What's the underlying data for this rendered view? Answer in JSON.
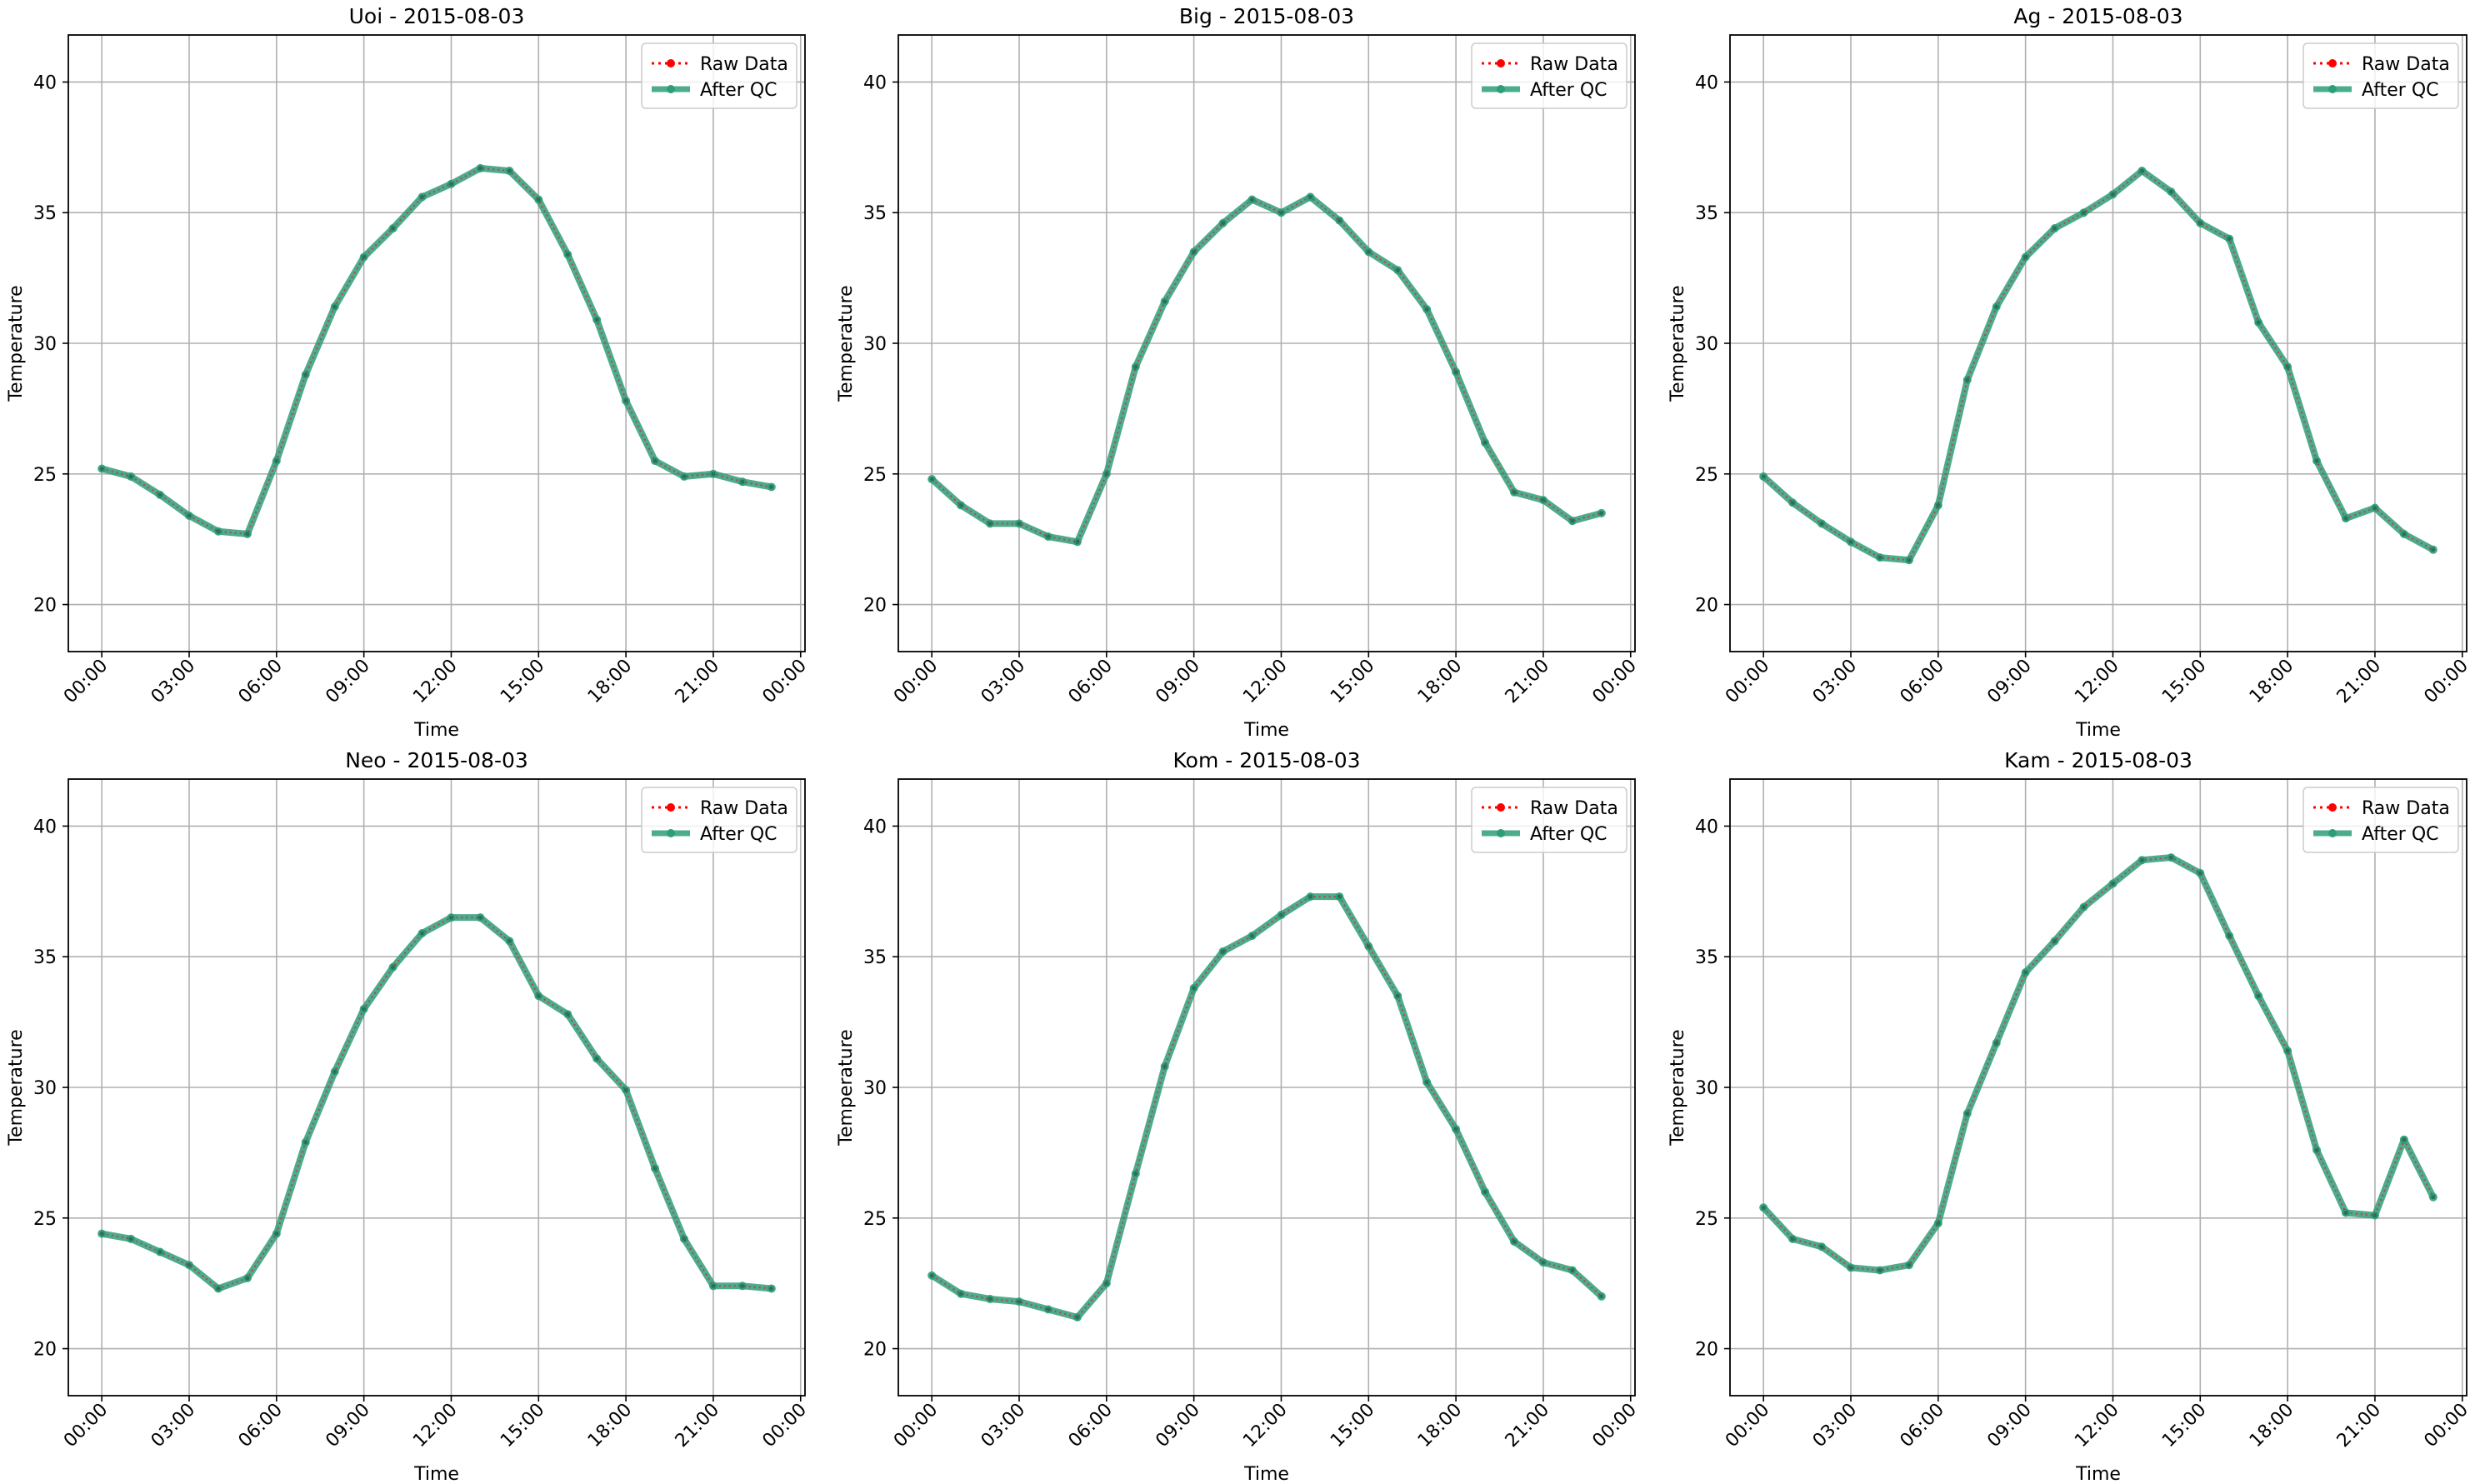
{
  "chart_data": [
    {
      "type": "line",
      "title": "Uoi - 2015-08-03",
      "xlabel": "Time",
      "ylabel": "Temperature",
      "ylim": [
        18.2,
        41.8
      ],
      "yticks": [
        20,
        25,
        30,
        35,
        40
      ],
      "xticks": [
        "00:00",
        "03:00",
        "06:00",
        "09:00",
        "12:00",
        "15:00",
        "18:00",
        "21:00",
        "00:00"
      ],
      "grid": true,
      "legend": "top-right",
      "x": [
        "00:00",
        "01:00",
        "02:00",
        "03:00",
        "04:00",
        "05:00",
        "06:00",
        "07:00",
        "08:00",
        "09:00",
        "10:00",
        "11:00",
        "12:00",
        "13:00",
        "14:00",
        "15:00",
        "16:00",
        "17:00",
        "18:00",
        "19:00",
        "20:00",
        "21:00",
        "22:00",
        "23:00"
      ],
      "series": [
        {
          "name": "Raw Data",
          "color": "#ff0000",
          "style": "dotted",
          "values": [
            25.2,
            24.9,
            24.2,
            23.4,
            22.8,
            22.7,
            25.5,
            28.8,
            31.4,
            33.3,
            34.4,
            35.6,
            36.1,
            36.7,
            36.6,
            35.5,
            33.4,
            30.9,
            27.8,
            25.5,
            24.9,
            25.0,
            24.7,
            24.5
          ]
        },
        {
          "name": "After QC",
          "color": "#2e9e7a",
          "style": "solid",
          "values": [
            25.2,
            24.9,
            24.2,
            23.4,
            22.8,
            22.7,
            25.5,
            28.8,
            31.4,
            33.3,
            34.4,
            35.6,
            36.1,
            36.7,
            36.6,
            35.5,
            33.4,
            30.9,
            27.8,
            25.5,
            24.9,
            25.0,
            24.7,
            24.5
          ]
        }
      ]
    },
    {
      "type": "line",
      "title": "Big - 2015-08-03",
      "xlabel": "Time",
      "ylabel": "Temperature",
      "ylim": [
        18.2,
        41.8
      ],
      "yticks": [
        20,
        25,
        30,
        35,
        40
      ],
      "xticks": [
        "00:00",
        "03:00",
        "06:00",
        "09:00",
        "12:00",
        "15:00",
        "18:00",
        "21:00",
        "00:00"
      ],
      "grid": true,
      "legend": "top-right",
      "x": [
        "00:00",
        "01:00",
        "02:00",
        "03:00",
        "04:00",
        "05:00",
        "06:00",
        "07:00",
        "08:00",
        "09:00",
        "10:00",
        "11:00",
        "12:00",
        "13:00",
        "14:00",
        "15:00",
        "16:00",
        "17:00",
        "18:00",
        "19:00",
        "20:00",
        "21:00",
        "22:00",
        "23:00"
      ],
      "series": [
        {
          "name": "Raw Data",
          "color": "#ff0000",
          "style": "dotted",
          "values": [
            24.8,
            23.8,
            23.1,
            23.1,
            22.6,
            22.4,
            25.0,
            29.1,
            31.6,
            33.5,
            34.6,
            35.5,
            35.0,
            35.6,
            34.7,
            33.5,
            32.8,
            31.3,
            28.9,
            26.2,
            24.3,
            24.0,
            23.2,
            23.5
          ]
        },
        {
          "name": "After QC",
          "color": "#2e9e7a",
          "style": "solid",
          "values": [
            24.8,
            23.8,
            23.1,
            23.1,
            22.6,
            22.4,
            25.0,
            29.1,
            31.6,
            33.5,
            34.6,
            35.5,
            35.0,
            35.6,
            34.7,
            33.5,
            32.8,
            31.3,
            28.9,
            26.2,
            24.3,
            24.0,
            23.2,
            23.5
          ]
        }
      ]
    },
    {
      "type": "line",
      "title": "Ag - 2015-08-03",
      "xlabel": "Time",
      "ylabel": "Temperature",
      "ylim": [
        18.2,
        41.8
      ],
      "yticks": [
        20,
        25,
        30,
        35,
        40
      ],
      "xticks": [
        "00:00",
        "03:00",
        "06:00",
        "09:00",
        "12:00",
        "15:00",
        "18:00",
        "21:00",
        "00:00"
      ],
      "grid": true,
      "legend": "top-right",
      "x": [
        "00:00",
        "01:00",
        "02:00",
        "03:00",
        "04:00",
        "05:00",
        "06:00",
        "07:00",
        "08:00",
        "09:00",
        "10:00",
        "11:00",
        "12:00",
        "13:00",
        "14:00",
        "15:00",
        "16:00",
        "17:00",
        "18:00",
        "19:00",
        "20:00",
        "21:00",
        "22:00",
        "23:00"
      ],
      "series": [
        {
          "name": "Raw Data",
          "color": "#ff0000",
          "style": "dotted",
          "values": [
            24.9,
            23.9,
            23.1,
            22.4,
            21.8,
            21.7,
            23.8,
            28.6,
            31.4,
            33.3,
            34.4,
            35.0,
            35.7,
            36.6,
            35.8,
            34.6,
            34.0,
            30.8,
            29.1,
            25.5,
            23.3,
            23.7,
            22.7,
            22.1
          ]
        },
        {
          "name": "After QC",
          "color": "#2e9e7a",
          "style": "solid",
          "values": [
            24.9,
            23.9,
            23.1,
            22.4,
            21.8,
            21.7,
            23.8,
            28.6,
            31.4,
            33.3,
            34.4,
            35.0,
            35.7,
            36.6,
            35.8,
            34.6,
            34.0,
            30.8,
            29.1,
            25.5,
            23.3,
            23.7,
            22.7,
            22.1
          ]
        }
      ]
    },
    {
      "type": "line",
      "title": "Neo - 2015-08-03",
      "xlabel": "Time",
      "ylabel": "Temperature",
      "ylim": [
        18.2,
        41.8
      ],
      "yticks": [
        20,
        25,
        30,
        35,
        40
      ],
      "xticks": [
        "00:00",
        "03:00",
        "06:00",
        "09:00",
        "12:00",
        "15:00",
        "18:00",
        "21:00",
        "00:00"
      ],
      "grid": true,
      "legend": "top-right",
      "x": [
        "00:00",
        "01:00",
        "02:00",
        "03:00",
        "04:00",
        "05:00",
        "06:00",
        "07:00",
        "08:00",
        "09:00",
        "10:00",
        "11:00",
        "12:00",
        "13:00",
        "14:00",
        "15:00",
        "16:00",
        "17:00",
        "18:00",
        "19:00",
        "20:00",
        "21:00",
        "22:00",
        "23:00"
      ],
      "series": [
        {
          "name": "Raw Data",
          "color": "#ff0000",
          "style": "dotted",
          "values": [
            24.4,
            24.2,
            23.7,
            23.2,
            22.3,
            22.7,
            24.4,
            27.9,
            30.6,
            33.0,
            34.6,
            35.9,
            36.5,
            36.5,
            35.6,
            33.5,
            32.8,
            31.1,
            29.9,
            26.9,
            24.2,
            22.4,
            22.4,
            22.3
          ]
        },
        {
          "name": "After QC",
          "color": "#2e9e7a",
          "style": "solid",
          "values": [
            24.4,
            24.2,
            23.7,
            23.2,
            22.3,
            22.7,
            24.4,
            27.9,
            30.6,
            33.0,
            34.6,
            35.9,
            36.5,
            36.5,
            35.6,
            33.5,
            32.8,
            31.1,
            29.9,
            26.9,
            24.2,
            22.4,
            22.4,
            22.3
          ]
        }
      ]
    },
    {
      "type": "line",
      "title": "Kom - 2015-08-03",
      "xlabel": "Time",
      "ylabel": "Temperature",
      "ylim": [
        18.2,
        41.8
      ],
      "yticks": [
        20,
        25,
        30,
        35,
        40
      ],
      "xticks": [
        "00:00",
        "03:00",
        "06:00",
        "09:00",
        "12:00",
        "15:00",
        "18:00",
        "21:00",
        "00:00"
      ],
      "grid": true,
      "legend": "top-right",
      "x": [
        "00:00",
        "01:00",
        "02:00",
        "03:00",
        "04:00",
        "05:00",
        "06:00",
        "07:00",
        "08:00",
        "09:00",
        "10:00",
        "11:00",
        "12:00",
        "13:00",
        "14:00",
        "15:00",
        "16:00",
        "17:00",
        "18:00",
        "19:00",
        "20:00",
        "21:00",
        "22:00",
        "23:00"
      ],
      "series": [
        {
          "name": "Raw Data",
          "color": "#ff0000",
          "style": "dotted",
          "values": [
            22.8,
            22.1,
            21.9,
            21.8,
            21.5,
            21.2,
            22.5,
            26.7,
            30.8,
            33.8,
            35.2,
            35.8,
            36.6,
            37.3,
            37.3,
            35.4,
            33.5,
            30.2,
            28.4,
            26.0,
            24.1,
            23.3,
            23.0,
            22.0
          ]
        },
        {
          "name": "After QC",
          "color": "#2e9e7a",
          "style": "solid",
          "values": [
            22.8,
            22.1,
            21.9,
            21.8,
            21.5,
            21.2,
            22.5,
            26.7,
            30.8,
            33.8,
            35.2,
            35.8,
            36.6,
            37.3,
            37.3,
            35.4,
            33.5,
            30.2,
            28.4,
            26.0,
            24.1,
            23.3,
            23.0,
            22.0
          ]
        }
      ]
    },
    {
      "type": "line",
      "title": "Kam - 2015-08-03",
      "xlabel": "Time",
      "ylabel": "Temperature",
      "ylim": [
        18.2,
        41.8
      ],
      "yticks": [
        20,
        25,
        30,
        35,
        40
      ],
      "xticks": [
        "00:00",
        "03:00",
        "06:00",
        "09:00",
        "12:00",
        "15:00",
        "18:00",
        "21:00",
        "00:00"
      ],
      "grid": true,
      "legend": "top-right",
      "x": [
        "00:00",
        "01:00",
        "02:00",
        "03:00",
        "04:00",
        "05:00",
        "06:00",
        "07:00",
        "08:00",
        "09:00",
        "10:00",
        "11:00",
        "12:00",
        "13:00",
        "14:00",
        "15:00",
        "16:00",
        "17:00",
        "18:00",
        "19:00",
        "20:00",
        "21:00",
        "22:00",
        "23:00"
      ],
      "series": [
        {
          "name": "Raw Data",
          "color": "#ff0000",
          "style": "dotted",
          "values": [
            25.4,
            24.2,
            23.9,
            23.1,
            23.0,
            23.2,
            24.8,
            29.0,
            31.7,
            34.4,
            35.6,
            36.9,
            37.8,
            38.7,
            38.8,
            38.2,
            35.8,
            33.5,
            31.4,
            27.6,
            25.2,
            25.1,
            28.0,
            25.8
          ]
        },
        {
          "name": "After QC",
          "color": "#2e9e7a",
          "style": "solid",
          "values": [
            25.4,
            24.2,
            23.9,
            23.1,
            23.0,
            23.2,
            24.8,
            29.0,
            31.7,
            34.4,
            35.6,
            36.9,
            37.8,
            38.7,
            38.8,
            38.2,
            35.8,
            33.5,
            31.4,
            27.6,
            25.2,
            25.1,
            28.0,
            25.8
          ]
        }
      ]
    }
  ]
}
